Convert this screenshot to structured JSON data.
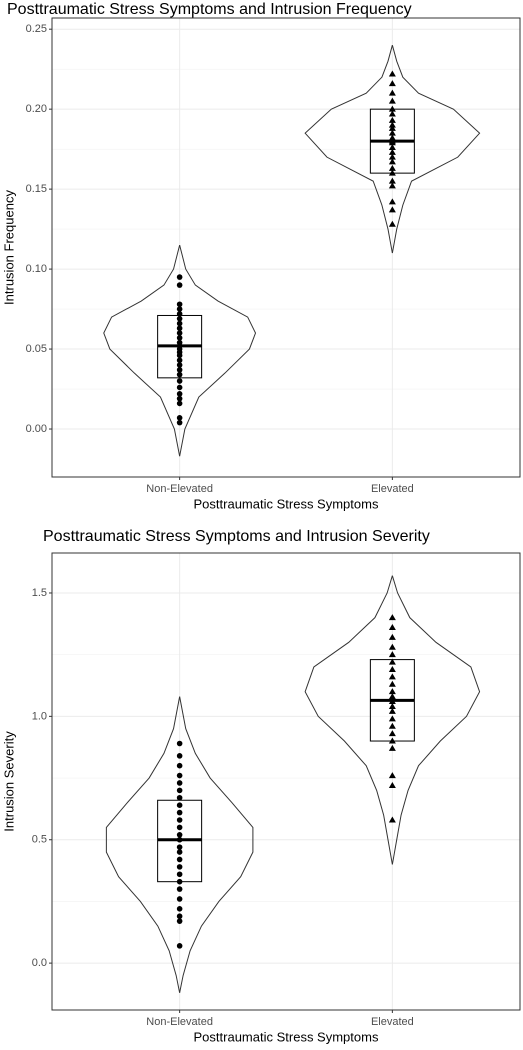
{
  "chart_data": [
    {
      "type": "violin",
      "title": "Posttraumatic Stress Symptoms and Intrusion Frequency",
      "x_label": "Posttraumatic Stress Symptoms",
      "y_label": "Intrusion Frequency",
      "categories": [
        "Non-Elevated",
        "Elevated"
      ],
      "ylim": [
        -0.03,
        0.257
      ],
      "yticks": [
        {
          "value": 0,
          "label": "0.00"
        },
        {
          "value": 0.05,
          "label": "0.05"
        },
        {
          "value": 0.1,
          "label": "0.10"
        },
        {
          "value": 0.15,
          "label": "0.15"
        },
        {
          "value": 0.2,
          "label": "0.20"
        },
        {
          "value": 0.25,
          "label": "0.25"
        }
      ],
      "grid": true,
      "groups": [
        {
          "shape": "circle",
          "q1": 0.032,
          "median": 0.052,
          "q3": 0.071,
          "points": [
            0.004,
            0.007,
            0.016,
            0.019,
            0.022,
            0.026,
            0.03,
            0.034,
            0.037,
            0.04,
            0.043,
            0.046,
            0.048,
            0.05,
            0.052,
            0.054,
            0.057,
            0.06,
            0.063,
            0.066,
            0.069,
            0.072,
            0.075,
            0.078,
            0.09,
            0.095
          ],
          "violin_y": [
            -0.017,
            0,
            0.02,
            0.035,
            0.05,
            0.06,
            0.07,
            0.08,
            0.09,
            0.1,
            0.115
          ],
          "violin_density": [
            0,
            0.06,
            0.22,
            0.52,
            0.8,
            0.87,
            0.78,
            0.44,
            0.18,
            0.07,
            0
          ]
        },
        {
          "shape": "triangle",
          "q1": 0.16,
          "median": 0.18,
          "q3": 0.2,
          "points": [
            0.128,
            0.137,
            0.142,
            0.152,
            0.155,
            0.16,
            0.163,
            0.167,
            0.17,
            0.173,
            0.176,
            0.179,
            0.18,
            0.182,
            0.185,
            0.188,
            0.19,
            0.193,
            0.197,
            0.2,
            0.205,
            0.21,
            0.216,
            0.222
          ],
          "violin_y": [
            0.11,
            0.125,
            0.14,
            0.155,
            0.17,
            0.185,
            0.2,
            0.21,
            0.22,
            0.23,
            0.24
          ],
          "violin_density": [
            0,
            0.05,
            0.12,
            0.22,
            0.75,
            1.0,
            0.7,
            0.3,
            0.12,
            0.05,
            0
          ]
        }
      ]
    },
    {
      "type": "violin",
      "title": "Posttraumatic Stress Symptoms and Intrusion Severity",
      "x_label": "Posttraumatic Stress Symptoms",
      "y_label": "Intrusion Severity",
      "categories": [
        "Non-Elevated",
        "Elevated"
      ],
      "ylim": [
        -0.19,
        1.662
      ],
      "yticks": [
        {
          "value": 0,
          "label": "0.0"
        },
        {
          "value": 0.5,
          "label": "0.5"
        },
        {
          "value": 1,
          "label": "1.0"
        },
        {
          "value": 1.5,
          "label": "1.5"
        }
      ],
      "grid": true,
      "groups": [
        {
          "shape": "circle",
          "q1": 0.33,
          "median": 0.5,
          "q3": 0.66,
          "points": [
            0.07,
            0.17,
            0.19,
            0.22,
            0.26,
            0.3,
            0.33,
            0.36,
            0.39,
            0.42,
            0.45,
            0.47,
            0.5,
            0.52,
            0.55,
            0.58,
            0.61,
            0.64,
            0.67,
            0.7,
            0.73,
            0.76,
            0.8,
            0.84,
            0.89
          ],
          "violin_y": [
            -0.12,
            -0.05,
            0.05,
            0.15,
            0.25,
            0.35,
            0.45,
            0.55,
            0.65,
            0.75,
            0.85,
            0.95,
            1.08
          ],
          "violin_density": [
            0,
            0.04,
            0.12,
            0.25,
            0.45,
            0.7,
            0.84,
            0.84,
            0.6,
            0.35,
            0.18,
            0.07,
            0
          ]
        },
        {
          "shape": "triangle",
          "q1": 0.9,
          "median": 1.065,
          "q3": 1.23,
          "points": [
            0.58,
            0.72,
            0.76,
            0.87,
            0.9,
            0.93,
            0.96,
            0.99,
            1.02,
            1.04,
            1.06,
            1.08,
            1.1,
            1.13,
            1.16,
            1.19,
            1.22,
            1.25,
            1.28,
            1.32,
            1.36,
            1.4
          ],
          "violin_y": [
            0.4,
            0.5,
            0.6,
            0.7,
            0.8,
            0.9,
            1.0,
            1.1,
            1.2,
            1.3,
            1.4,
            1.5,
            1.57
          ],
          "violin_density": [
            0,
            0.05,
            0.1,
            0.18,
            0.3,
            0.55,
            0.85,
            1.0,
            0.9,
            0.5,
            0.2,
            0.06,
            0
          ]
        }
      ]
    }
  ]
}
